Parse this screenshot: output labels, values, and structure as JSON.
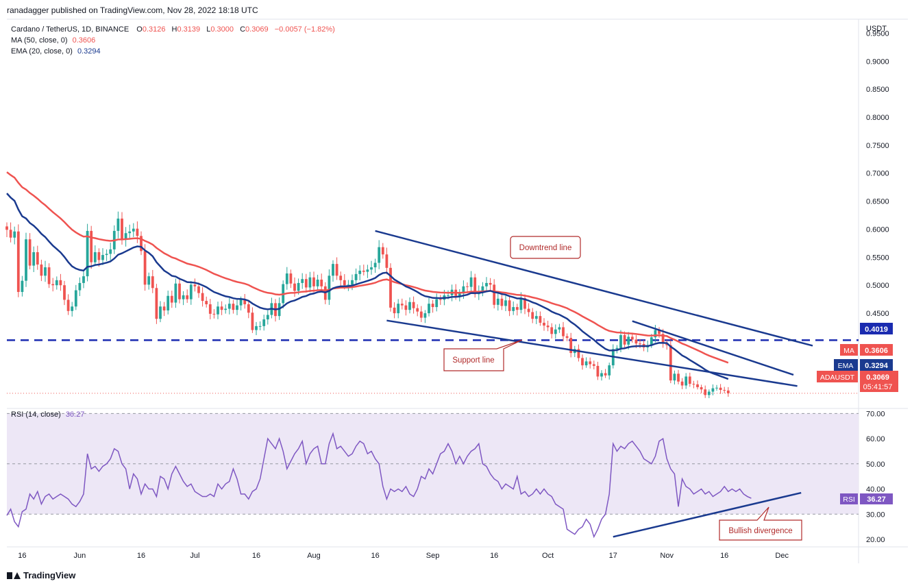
{
  "header": {
    "publisher_line": "ranadagger published on TradingView.com, Nov 28, 2022 18:18 UTC"
  },
  "footer": {
    "brand": "TradingView"
  },
  "colors": {
    "up": "#26a69a",
    "down": "#ef5350",
    "ma": "#ef5350",
    "ema": "#1a3a8f",
    "trendline": "#1a3a8f",
    "rsi": "#7e57c2",
    "rsi_band": "#ede7f6",
    "label_border": "#b02a2a"
  },
  "chart_data": [
    {
      "type": "candlestick",
      "legend": {
        "symbol": "Cardano / TetherUS, 1D, BINANCE",
        "o_label": "O",
        "o_value": "0.3126",
        "h_label": "H",
        "h_value": "0.3139",
        "l_label": "L",
        "l_value": "0.3000",
        "c_label": "C",
        "c_value": "0.3069",
        "change": "−0.0057 (−1.82%)",
        "ma_label": "MA (50, close, 0)",
        "ma_value": "0.3606",
        "ema_label": "EMA (20, close, 0)",
        "ema_value": "0.3294"
      },
      "axis_unit": "USDT",
      "y_ticks": [
        "0.9500",
        "0.9000",
        "0.8500",
        "0.8000",
        "0.7500",
        "0.7000",
        "0.6500",
        "0.6000",
        "0.5500",
        "0.5000",
        "0.4500"
      ],
      "y_tick_values": [
        0.95,
        0.9,
        0.85,
        0.8,
        0.75,
        0.7,
        0.65,
        0.6,
        0.55,
        0.5,
        0.45
      ],
      "ylim": [
        0.28,
        0.975
      ],
      "x_ticks": [
        "16",
        "Jun",
        "16",
        "Jul",
        "16",
        "Aug",
        "16",
        "Sep",
        "16",
        "Oct",
        "17",
        "Nov",
        "16",
        "Dec"
      ],
      "x_tick_days": [
        4,
        19,
        35,
        49,
        65,
        80,
        96,
        111,
        127,
        141,
        158,
        172,
        187,
        202
      ],
      "support_level": {
        "value": 0.4019,
        "label": "0.4019"
      },
      "badges": {
        "ma": {
          "tag": "MA",
          "value": "0.3606"
        },
        "ema": {
          "tag": "EMA",
          "value": "0.3294"
        },
        "price": {
          "tag": "ADAUSDT",
          "value": "0.3069",
          "countdown": "05:41:57"
        }
      },
      "annotations": {
        "downtrend": "Downtrend line",
        "support": "Support line"
      },
      "trendlines": [
        {
          "name": "downtrend",
          "from": [
            96,
            0.597
          ],
          "to": [
            210,
            0.392
          ]
        },
        {
          "name": "support",
          "from": [
            99,
            0.437
          ],
          "to": [
            206,
            0.32
          ]
        },
        {
          "name": "lower-support",
          "from": [
            163,
            0.436
          ],
          "to": [
            205,
            0.34
          ]
        }
      ],
      "close": [
        0.599,
        0.585,
        0.596,
        0.488,
        0.508,
        0.582,
        0.535,
        0.559,
        0.537,
        0.517,
        0.532,
        0.502,
        0.5,
        0.509,
        0.5,
        0.474,
        0.454,
        0.462,
        0.491,
        0.504,
        0.516,
        0.597,
        0.541,
        0.559,
        0.545,
        0.554,
        0.556,
        0.564,
        0.597,
        0.619,
        0.581,
        0.593,
        0.596,
        0.601,
        0.588,
        0.561,
        0.501,
        0.516,
        0.495,
        0.44,
        0.462,
        0.455,
        0.481,
        0.469,
        0.503,
        0.475,
        0.482,
        0.475,
        0.501,
        0.498,
        0.486,
        0.472,
        0.466,
        0.449,
        0.448,
        0.462,
        0.456,
        0.458,
        0.467,
        0.456,
        0.464,
        0.474,
        0.466,
        0.451,
        0.42,
        0.427,
        0.427,
        0.439,
        0.447,
        0.468,
        0.445,
        0.468,
        0.502,
        0.521,
        0.503,
        0.49,
        0.504,
        0.511,
        0.496,
        0.514,
        0.498,
        0.51,
        0.498,
        0.474,
        0.517,
        0.538,
        0.517,
        0.509,
        0.5,
        0.501,
        0.509,
        0.52,
        0.526,
        0.524,
        0.528,
        0.532,
        0.54,
        0.568,
        0.555,
        0.531,
        0.46,
        0.45,
        0.467,
        0.464,
        0.456,
        0.47,
        0.459,
        0.453,
        0.442,
        0.45,
        0.467,
        0.461,
        0.475,
        0.474,
        0.482,
        0.482,
        0.492,
        0.481,
        0.485,
        0.498,
        0.497,
        0.514,
        0.484,
        0.489,
        0.498,
        0.504,
        0.501,
        0.465,
        0.476,
        0.463,
        0.473,
        0.454,
        0.461,
        0.456,
        0.477,
        0.458,
        0.452,
        0.44,
        0.445,
        0.433,
        0.428,
        0.425,
        0.413,
        0.421,
        0.425,
        0.409,
        0.406,
        0.379,
        0.386,
        0.37,
        0.357,
        0.364,
        0.359,
        0.356,
        0.337,
        0.343,
        0.339,
        0.357,
        0.386,
        0.388,
        0.411,
        0.394,
        0.408,
        0.403,
        0.396,
        0.395,
        0.389,
        0.393,
        0.407,
        0.42,
        0.413,
        0.396,
        0.393,
        0.33,
        0.342,
        0.328,
        0.321,
        0.337,
        0.324,
        0.323,
        0.318,
        0.314,
        0.304,
        0.31,
        0.316,
        0.317,
        0.313,
        0.312,
        0.307
      ]
    },
    {
      "type": "line",
      "legend": {
        "label": "RSI (14, close)",
        "value": "36.27"
      },
      "y_ticks": [
        "70.00",
        "60.00",
        "50.00",
        "40.00",
        "30.00",
        "20.00"
      ],
      "y_tick_values": [
        70,
        60,
        50,
        40,
        30,
        20
      ],
      "ylim": [
        17,
        72
      ],
      "band": [
        30,
        70
      ],
      "midline": 50,
      "badge": {
        "tag": "RSI",
        "value": "36.27"
      },
      "annotation": "Bullish divergence",
      "trendline": {
        "from": [
          158,
          21
        ],
        "to": [
          207,
          38.5
        ]
      },
      "values": [
        29.5,
        32,
        27,
        25,
        31,
        32,
        38,
        36,
        39,
        34,
        37,
        38,
        36,
        37,
        38,
        37,
        36,
        34,
        33,
        35,
        38,
        54,
        48,
        49,
        47,
        49,
        50,
        52,
        56,
        55,
        50,
        48,
        40,
        46,
        44,
        38,
        42,
        40,
        40,
        37,
        45,
        44,
        40,
        46,
        49,
        46,
        43,
        41,
        42,
        39,
        38,
        37,
        37,
        38,
        37,
        42,
        40,
        42,
        43,
        48,
        44,
        38,
        38,
        36,
        39,
        40,
        44,
        52,
        60,
        58,
        56,
        60,
        55,
        48,
        51,
        54,
        56,
        59,
        50,
        54,
        56,
        57,
        50,
        50,
        58,
        62,
        56,
        57,
        55,
        53,
        54,
        57,
        59,
        58,
        54,
        55,
        52,
        50,
        41,
        36,
        40,
        39,
        40,
        39,
        41,
        38,
        37,
        40,
        45,
        44,
        48,
        46,
        50,
        54,
        55,
        58,
        55,
        50,
        53,
        50,
        53,
        55,
        56,
        58,
        50,
        49,
        46,
        44,
        43,
        40,
        42,
        41,
        40,
        45,
        38,
        39,
        37,
        38,
        40,
        38,
        40,
        38,
        37,
        34,
        33,
        32,
        24,
        23,
        22,
        24,
        25,
        28,
        26,
        21,
        24,
        28,
        30,
        38,
        58,
        55,
        57,
        56,
        58,
        59,
        57,
        55,
        52,
        51,
        50,
        53,
        59,
        60,
        52,
        48,
        46,
        33,
        44,
        41,
        40,
        38,
        39,
        40,
        38,
        39,
        37,
        38,
        39,
        41,
        39,
        40,
        39,
        40,
        38,
        37,
        36.3
      ]
    }
  ]
}
